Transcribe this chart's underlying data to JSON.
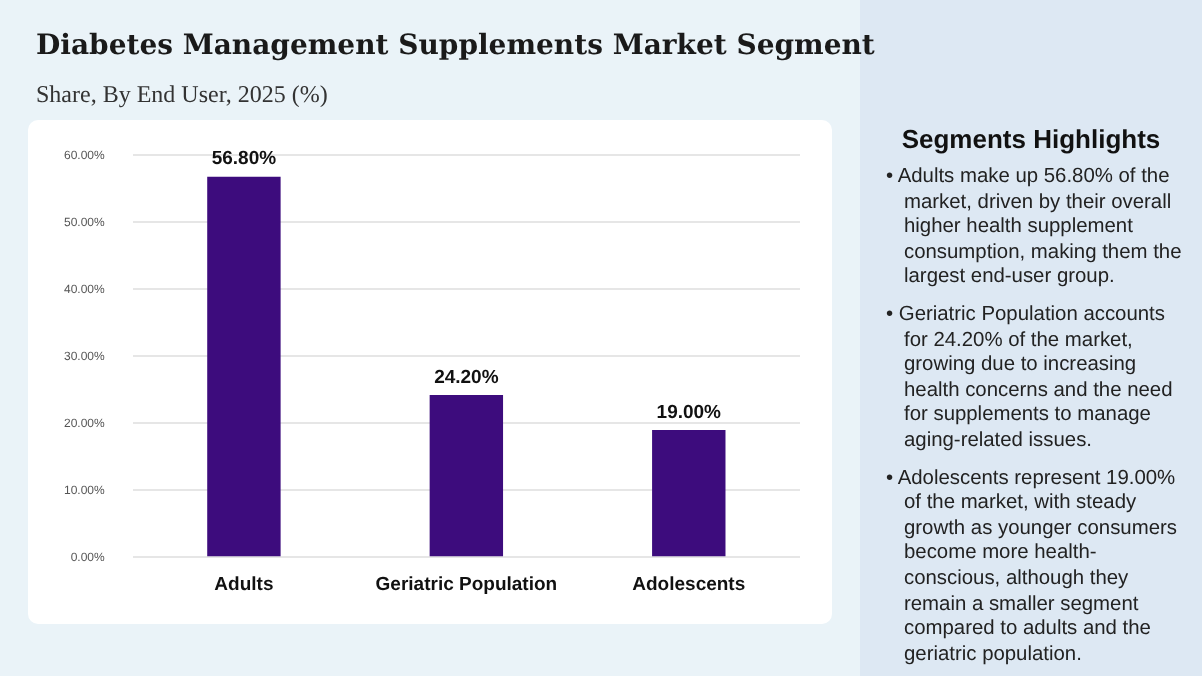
{
  "chart_data": {
    "type": "bar",
    "title": "Diabetes Management Supplements Market Segment",
    "subtitle": "Share, By End User, 2025 (%)",
    "categories": [
      "Adults",
      "Geriatric Population",
      "Adolescents"
    ],
    "values": [
      56.8,
      24.2,
      19.0
    ],
    "color": "#3d0c7d",
    "value_labels": [
      "56.80%",
      "24.20%",
      "19.00%"
    ],
    "ylim": [
      0,
      60
    ],
    "yticks": [
      {
        "value": 0,
        "label": "0.00%"
      },
      {
        "value": 10,
        "label": "10.00%"
      },
      {
        "value": 20,
        "label": "20.00%"
      },
      {
        "value": 30,
        "label": "30.00%"
      },
      {
        "value": 40,
        "label": "40.00%"
      },
      {
        "value": 50,
        "label": "50.00%"
      },
      {
        "value": 60,
        "label": "60.00%"
      }
    ],
    "grid": "y",
    "legend": false,
    "annotations": [
      "Segments Highlights",
      "• Adults make up 56.80% of the market, driven by their overall higher health supplement consumption, making them the largest end-user group.",
      "• Geriatric Population accounts for 24.20% of the market, growing due to increasing health concerns and the need for supplements to manage aging-related issues.",
      "• Adolescents represent 19.00% of the market, with steady growth as younger consumers become more health-conscious, although they remain a smaller segment compared to adults and the geriatric population."
    ]
  }
}
